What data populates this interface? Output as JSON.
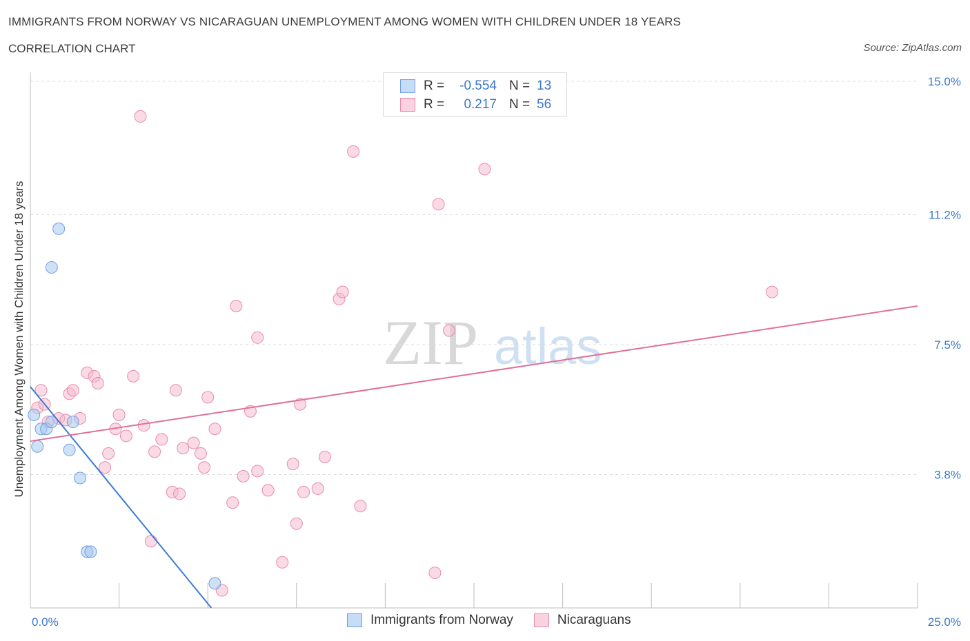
{
  "header": {
    "title": "IMMIGRANTS FROM NORWAY VS NICARAGUAN UNEMPLOYMENT AMONG WOMEN WITH CHILDREN UNDER 18 YEARS",
    "subtitle": "CORRELATION CHART",
    "source": "Source: ZipAtlas.com"
  },
  "watermark": {
    "zip": "ZIP",
    "atlas": "atlas"
  },
  "legend": {
    "rows": [
      {
        "r_label": "R =",
        "r_value": "-0.554",
        "n_label": "N =",
        "n_value": "13",
        "color": "#a8c8f0"
      },
      {
        "r_label": "R =",
        "r_value": "0.217",
        "n_label": "N =",
        "n_value": "56",
        "color": "#f6b8cc"
      }
    ],
    "series": [
      {
        "name": "Immigrants from Norway",
        "color": "#a8c8f0"
      },
      {
        "name": "Nicaraguans",
        "color": "#f6b8cc"
      }
    ]
  },
  "chart_data": {
    "type": "scatter",
    "ylabel": "Unemployment Among Women with Children Under 18 years",
    "xlim": [
      0,
      25
    ],
    "ylim": [
      0,
      15
    ],
    "x_tick_labels": [
      "0.0%",
      "25.0%"
    ],
    "y_ticks": [
      3.8,
      7.5,
      11.2,
      15.0
    ],
    "y_tick_labels": [
      "3.8%",
      "7.5%",
      "11.2%",
      "15.0%"
    ],
    "grid": true,
    "series": [
      {
        "name": "Immigrants from Norway",
        "color": "#a8c8f0",
        "line_color": "#3a7bd5",
        "trend": [
          [
            0,
            6.3
          ],
          [
            5.1,
            0
          ]
        ],
        "points": [
          [
            0.1,
            5.5
          ],
          [
            0.2,
            4.6
          ],
          [
            0.3,
            5.1
          ],
          [
            0.45,
            5.1
          ],
          [
            0.6,
            5.3
          ],
          [
            0.8,
            10.8
          ],
          [
            0.6,
            9.7
          ],
          [
            1.1,
            4.5
          ],
          [
            1.2,
            5.3
          ],
          [
            1.4,
            3.7
          ],
          [
            1.6,
            1.6
          ],
          [
            1.7,
            1.6
          ],
          [
            5.2,
            0.7
          ]
        ]
      },
      {
        "name": "Nicaraguans",
        "color": "#f6b8cc",
        "line_color": "#e07099",
        "trend": [
          [
            0,
            4.75
          ],
          [
            25,
            8.6
          ]
        ],
        "points": [
          [
            3.1,
            14.0
          ],
          [
            9.1,
            13.0
          ],
          [
            12.8,
            12.5
          ],
          [
            11.5,
            11.5
          ],
          [
            20.9,
            9.0
          ],
          [
            8.7,
            8.8
          ],
          [
            8.8,
            9.0
          ],
          [
            5.8,
            8.6
          ],
          [
            6.4,
            7.7
          ],
          [
            11.8,
            7.9
          ],
          [
            0.2,
            5.7
          ],
          [
            0.3,
            6.2
          ],
          [
            0.4,
            5.8
          ],
          [
            0.8,
            5.4
          ],
          [
            1.1,
            6.1
          ],
          [
            1.2,
            6.2
          ],
          [
            1.4,
            5.4
          ],
          [
            1.6,
            6.7
          ],
          [
            1.8,
            6.6
          ],
          [
            1.9,
            6.4
          ],
          [
            2.5,
            5.5
          ],
          [
            2.4,
            5.1
          ],
          [
            2.7,
            4.9
          ],
          [
            2.2,
            4.4
          ],
          [
            2.1,
            4.0
          ],
          [
            2.9,
            6.6
          ],
          [
            3.2,
            5.2
          ],
          [
            3.5,
            4.45
          ],
          [
            3.7,
            4.8
          ],
          [
            4.1,
            6.2
          ],
          [
            4.3,
            4.55
          ],
          [
            4.6,
            4.7
          ],
          [
            4.8,
            4.4
          ],
          [
            4.9,
            4.0
          ],
          [
            5.0,
            6.0
          ],
          [
            5.2,
            5.1
          ],
          [
            4.0,
            3.3
          ],
          [
            4.2,
            3.25
          ],
          [
            3.4,
            1.9
          ],
          [
            5.7,
            3.0
          ],
          [
            6.0,
            3.75
          ],
          [
            6.2,
            5.6
          ],
          [
            6.4,
            3.9
          ],
          [
            6.7,
            3.35
          ],
          [
            7.4,
            4.1
          ],
          [
            7.6,
            5.8
          ],
          [
            7.7,
            3.3
          ],
          [
            8.1,
            3.4
          ],
          [
            8.3,
            4.3
          ],
          [
            7.1,
            1.3
          ],
          [
            7.5,
            2.4
          ],
          [
            9.3,
            2.9
          ],
          [
            11.4,
            1.0
          ],
          [
            5.4,
            0.5
          ],
          [
            0.5,
            5.3
          ],
          [
            1.0,
            5.35
          ]
        ]
      }
    ]
  }
}
